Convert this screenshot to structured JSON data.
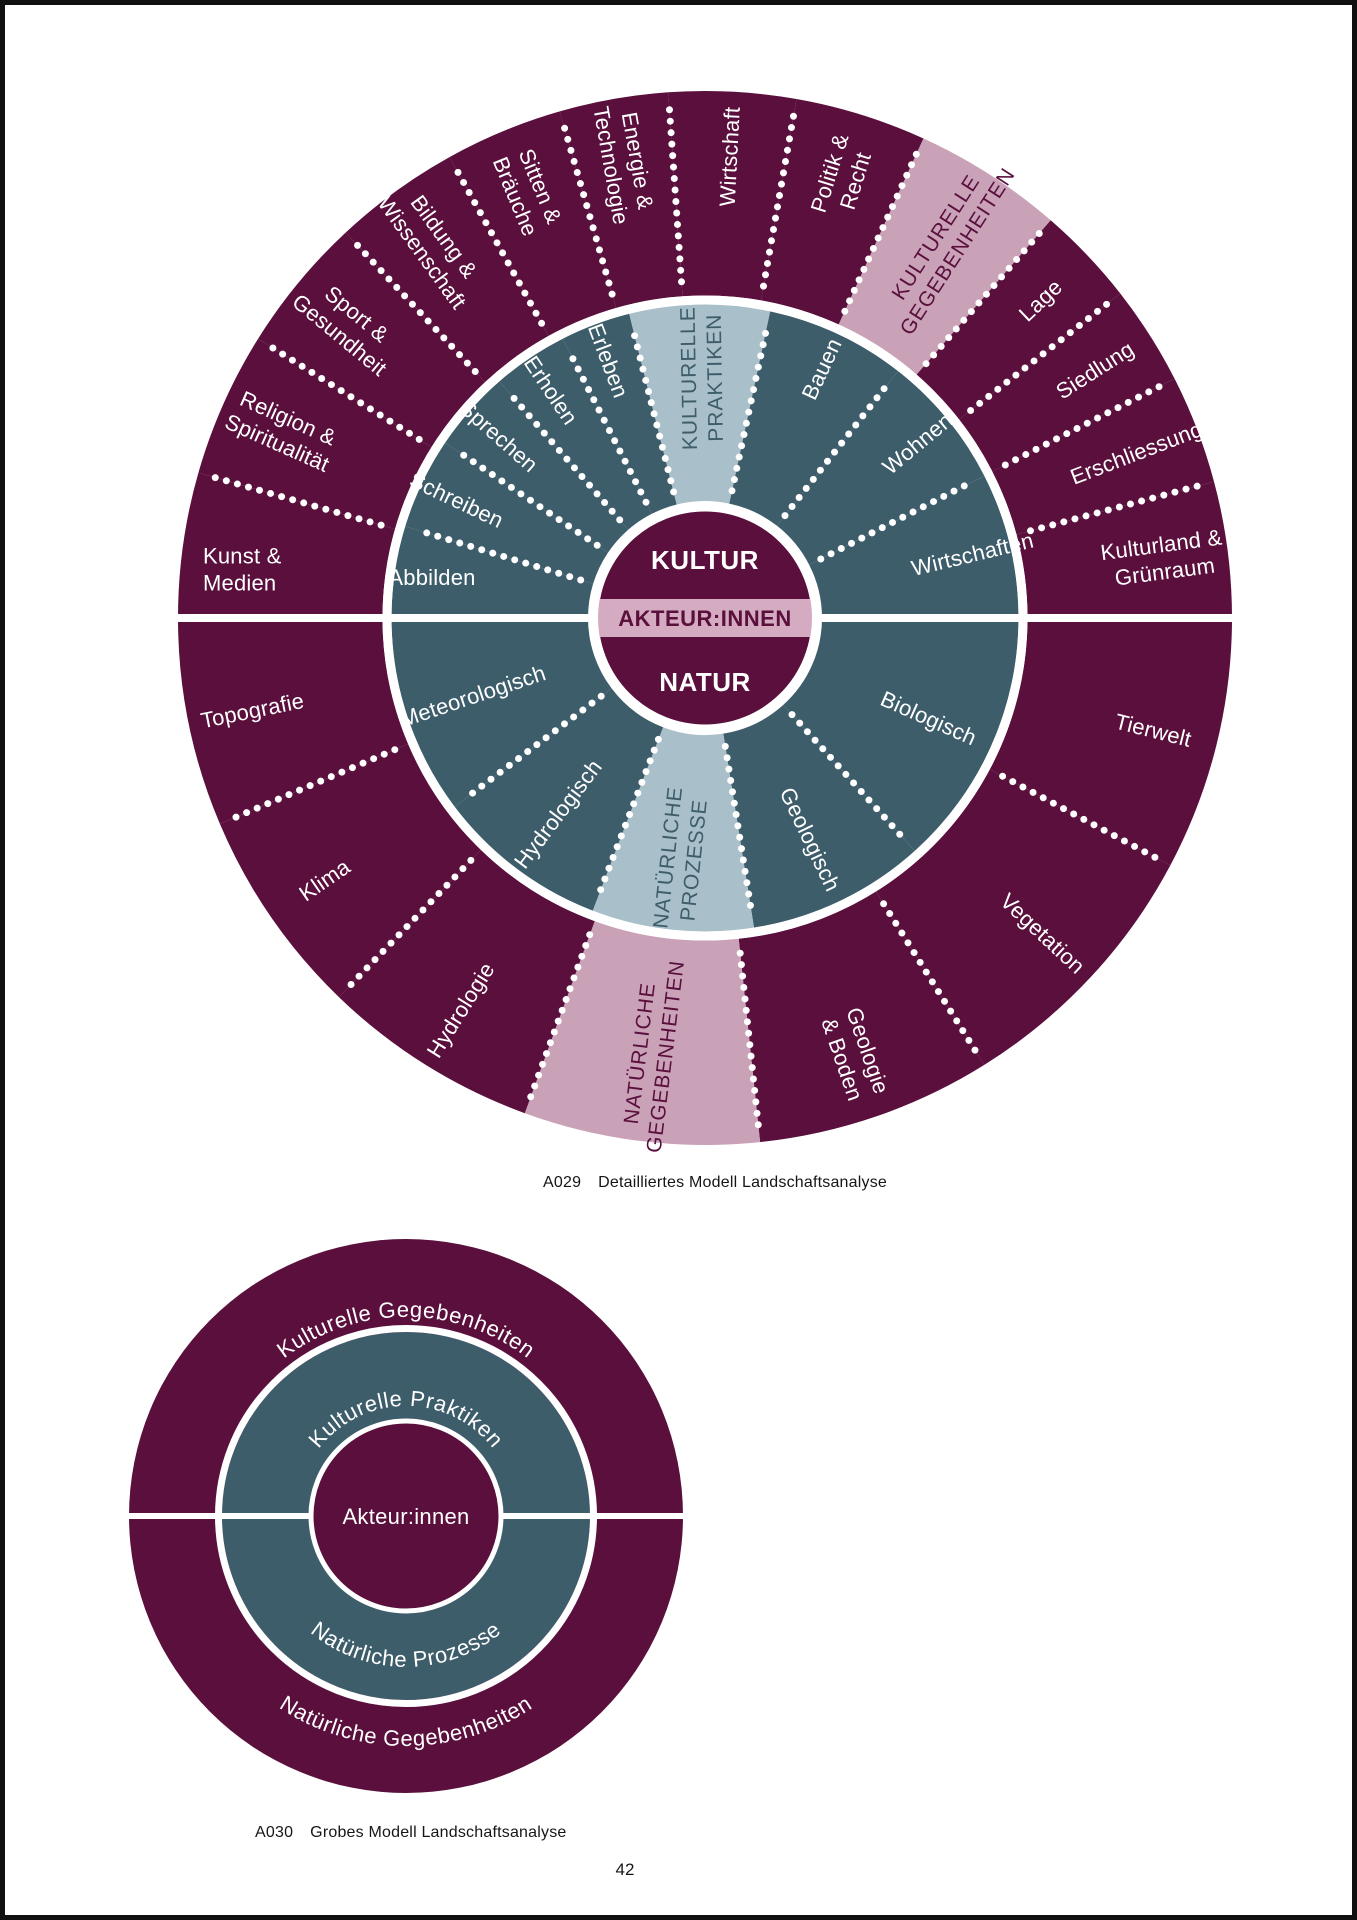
{
  "page": {
    "page_number": "42",
    "captions": [
      {
        "label": "A029",
        "text": "Detailliertes Modell Landschaftsanalyse"
      },
      {
        "label": "A030",
        "text": "Grobes Modell Landschaftsanalyse"
      }
    ]
  },
  "colors": {
    "maroon": "#5a0f3c",
    "teal": "#3e5d6b",
    "light_blue": "#a9bfc9",
    "pink": "#c9a2b8",
    "pink_band": "#d4abc1",
    "white": "#ffffff",
    "caption_text": "#161616",
    "page_border": "#101010"
  },
  "chart_data": [
    {
      "type": "sunburst",
      "name": "detailliertes-modell-landschaftsanalyse",
      "center_labels": {
        "top": "KULTUR",
        "middle": "AKTEUR:INNEN",
        "bottom": "NATUR"
      },
      "rings": {
        "outer_upper": {
          "segments": [
            {
              "lines": [
                "Kunst &",
                "Medien"
              ],
              "from": -90,
              "to": -74,
              "rot": 0,
              "anchor": "start",
              "pos": [
                198,
                564
              ]
            },
            {
              "lines": [
                "Religion &",
                "Spiritualität"
              ],
              "from": -74,
              "to": -58
            },
            {
              "lines": [
                "Sport &",
                "Gesundheit"
              ],
              "from": -58,
              "to": -43
            },
            {
              "lines": [
                "Bildung &",
                "Wissenschaft"
              ],
              "from": -43,
              "to": -29
            },
            {
              "lines": [
                "Sitten &",
                "Bräuche"
              ],
              "from": -29,
              "to": -16
            },
            {
              "lines": [
                "Energie &",
                "Technologie"
              ],
              "from": -16,
              "to": -4
            },
            {
              "lines": [
                "Wirtschaft"
              ],
              "from": -4,
              "to": 10
            },
            {
              "lines": [
                "Politik &",
                "Recht"
              ],
              "from": 10,
              "to": 24.5
            },
            {
              "lines": [
                "KULTURELLE",
                "GEGEBENHEITEN"
              ],
              "from": 24.5,
              "to": 41,
              "highlight": true,
              "r": 445,
              "rot": -57.25,
              "fontSize": 21,
              "tracking": 1
            },
            {
              "lines": [
                "Lage"
              ],
              "from": 41,
              "to": 52
            },
            {
              "lines": [
                "Siedlung"
              ],
              "from": 52,
              "to": 63
            },
            {
              "lines": [
                "Erschliessung"
              ],
              "from": 63,
              "to": 75
            },
            {
              "lines": [
                "Kulturland &",
                "Grünraum"
              ],
              "from": 75,
              "to": 90
            }
          ]
        },
        "inner_upper": {
          "segments": [
            {
              "lines": [
                "Abbilden"
              ],
              "from": -90,
              "to": -73,
              "rot": 0,
              "r": 276
            },
            {
              "lines": [
                "Schreiben"
              ],
              "from": -73,
              "to": -56
            },
            {
              "lines": [
                "Sprechen"
              ],
              "from": -56,
              "to": -41
            },
            {
              "lines": [
                "Erholen"
              ],
              "from": -41,
              "to": -27
            },
            {
              "lines": [
                "Erleben"
              ],
              "from": -27,
              "to": -14
            },
            {
              "lines": [
                "KULTURELLE",
                "PRAKTIKEN"
              ],
              "from": -14,
              "to": 12,
              "highlight": true,
              "r": 240,
              "rot": -91,
              "fontSize": 21,
              "tracking": 1
            },
            {
              "lines": [
                "Bauen"
              ],
              "from": 12,
              "to": 38
            },
            {
              "lines": [
                "Wohnen"
              ],
              "from": 38,
              "to": 63
            },
            {
              "lines": [
                "Wirtschaften"
              ],
              "from": 63,
              "to": 90
            }
          ]
        },
        "inner_lower": {
          "segments": [
            {
              "lines": [
                "Biologisch"
              ],
              "from": 90,
              "to": 138
            },
            {
              "lines": [
                "Geologisch"
              ],
              "from": 138,
              "to": 171
            },
            {
              "lines": [
                "NATÜRLICHE",
                "PROZESSE"
              ],
              "from": 171,
              "to": 201,
              "highlight": true,
              "r": 242,
              "rot": -84,
              "fontSize": 21,
              "tracking": 1
            },
            {
              "lines": [
                "Hydrologisch"
              ],
              "from": 201,
              "to": 233
            },
            {
              "lines": [
                "Meteorologisch"
              ],
              "from": 233,
              "to": 270
            }
          ]
        },
        "outer_lower": {
          "segments": [
            {
              "lines": [
                "Tierwelt"
              ],
              "from": 90,
              "to": 118
            },
            {
              "lines": [
                "Vegetation"
              ],
              "from": 118,
              "to": 148
            },
            {
              "lines": [
                "Geologie",
                "& Boden"
              ],
              "from": 148,
              "to": 174
            },
            {
              "lines": [
                "NATÜRLICHE",
                "GEGEBENHEITEN"
              ],
              "from": 174,
              "to": 200,
              "highlight": true,
              "r": 440,
              "rot": -83,
              "fontSize": 21,
              "tracking": 1
            },
            {
              "lines": [
                "Hydrologie"
              ],
              "from": 200,
              "to": 224
            },
            {
              "lines": [
                "Klima"
              ],
              "from": 224,
              "to": 247
            },
            {
              "lines": [
                "Topografie"
              ],
              "from": 247,
              "to": 270
            }
          ]
        }
      }
    },
    {
      "type": "concentric",
      "name": "grobes-modell-landschaftsanalyse",
      "center_label": "Akteur:innen",
      "rings": [
        {
          "name": "outer",
          "upper": "Kulturelle Gegebenheiten",
          "lower": "Natürliche Gegebenheiten"
        },
        {
          "name": "middle",
          "upper": "Kulturelle Praktiken",
          "lower": "Natürliche Prozesse"
        }
      ]
    }
  ]
}
